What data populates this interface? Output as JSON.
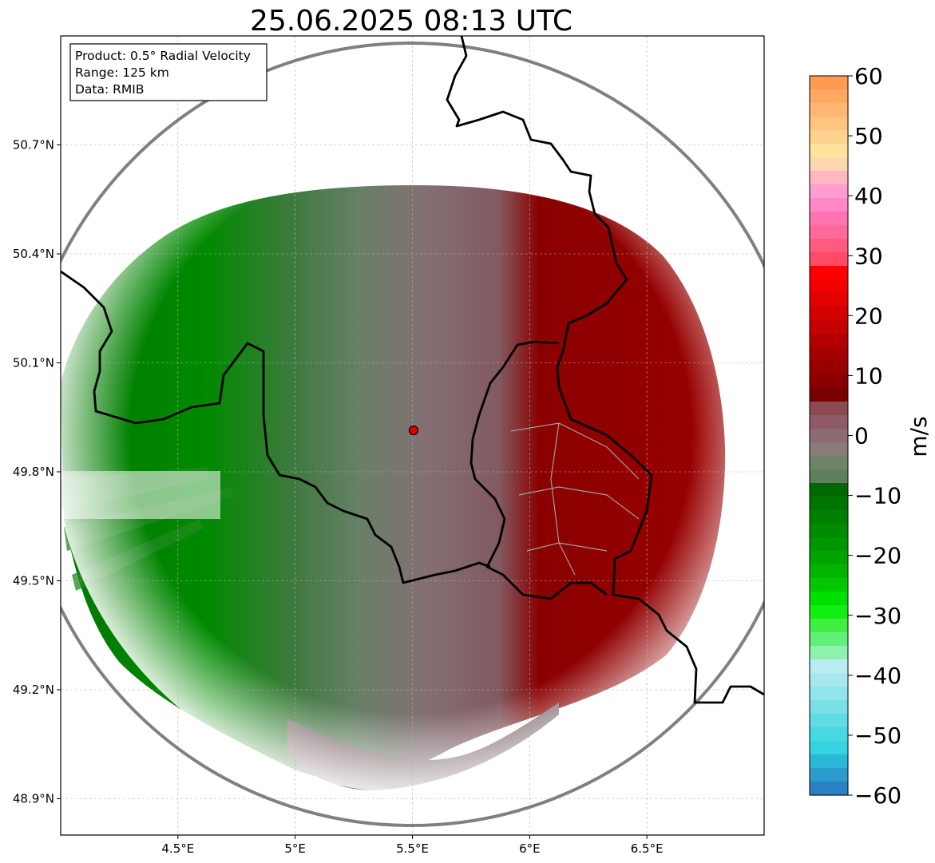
{
  "title": "25.06.2025 08:13 UTC",
  "info_box": {
    "product": "Product: 0.5° Radial Velocity",
    "range": "Range: 125 km",
    "data": "Data: RMIB"
  },
  "map": {
    "lon_range": [
      4.0,
      7.0
    ],
    "lat_range": [
      48.8,
      51.0
    ],
    "lon_ticks": [
      {
        "value": 4.5,
        "label": "4.5°E"
      },
      {
        "value": 5.0,
        "label": "5°E"
      },
      {
        "value": 5.5,
        "label": "5.5°E"
      },
      {
        "value": 6.0,
        "label": "6°E"
      },
      {
        "value": 6.5,
        "label": "6.5°E"
      }
    ],
    "lat_ticks": [
      {
        "value": 50.7,
        "label": "50.7°N"
      },
      {
        "value": 50.4,
        "label": "50.4°N"
      },
      {
        "value": 50.1,
        "label": "50.1°N"
      },
      {
        "value": 49.8,
        "label": "49.8°N"
      },
      {
        "value": 49.5,
        "label": "49.5°N"
      },
      {
        "value": 49.2,
        "label": "49.2°N"
      },
      {
        "value": 48.9,
        "label": "48.9°N"
      }
    ],
    "radar_site": {
      "lon": 5.505,
      "lat": 49.914
    },
    "grid": true
  },
  "colorbar": {
    "label": "m/s",
    "min": -60,
    "max": 60,
    "ticks": [
      {
        "value": 60,
        "label": "60"
      },
      {
        "value": 50,
        "label": "50"
      },
      {
        "value": 40,
        "label": "40"
      },
      {
        "value": 30,
        "label": "30"
      },
      {
        "value": 20,
        "label": "20"
      },
      {
        "value": 10,
        "label": "10"
      },
      {
        "value": 0,
        "label": "0"
      },
      {
        "value": -10,
        "label": "−10"
      },
      {
        "value": -20,
        "label": "−20"
      },
      {
        "value": -30,
        "label": "−30"
      },
      {
        "value": -40,
        "label": "−40"
      },
      {
        "value": -50,
        "label": "−50"
      },
      {
        "value": -60,
        "label": "−60"
      }
    ],
    "colors_top_to_bottom": [
      "#ff9a50",
      "#ffa862",
      "#ffb671",
      "#ffc57e",
      "#ffd38e",
      "#ffe29c",
      "#fdd6b0",
      "#ffb8c0",
      "#ff9cd0",
      "#ff88c8",
      "#ff74b0",
      "#ff6a9a",
      "#ff5a80",
      "#ff4a68",
      "#ff0000",
      "#f20000",
      "#e20000",
      "#d20000",
      "#c40000",
      "#b40000",
      "#a50000",
      "#980000",
      "#8a0000",
      "#7a0000",
      "#8a4a52",
      "#8e5a66",
      "#8e6a72",
      "#8a7a7a",
      "#6e8468",
      "#5e7e5c",
      "#006800",
      "#007400",
      "#008000",
      "#008c00",
      "#009800",
      "#00a400",
      "#00b400",
      "#00c800",
      "#00e000",
      "#12f012",
      "#40f040",
      "#60f078",
      "#90f0b0",
      "#b8ecf0",
      "#a8e8ec",
      "#90e4ea",
      "#78e0e6",
      "#60dce4",
      "#48d8e2",
      "#34d4e0",
      "#2ab8d8",
      "#2a9ccc",
      "#2a80c4"
    ]
  }
}
